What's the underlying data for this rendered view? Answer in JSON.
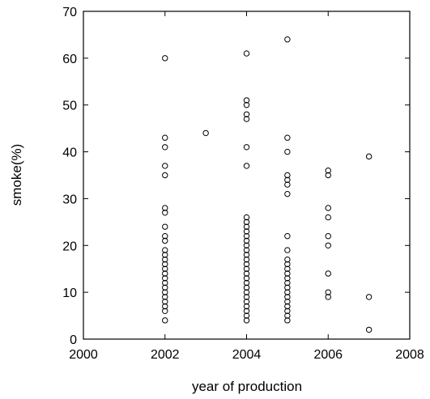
{
  "chart_data": {
    "type": "scatter",
    "title": "",
    "xlabel": "year of production",
    "ylabel": "smoke(%)",
    "xlim": [
      2000,
      2008
    ],
    "ylim": [
      0,
      70
    ],
    "xticks": [
      2000,
      2002,
      2004,
      2006,
      2008
    ],
    "yticks": [
      0,
      10,
      20,
      30,
      40,
      50,
      60,
      70
    ],
    "grid": false,
    "legend": "none",
    "marker": "open-circle",
    "points": [
      [
        2002,
        60
      ],
      [
        2002,
        43
      ],
      [
        2002,
        41
      ],
      [
        2002,
        37
      ],
      [
        2002,
        35
      ],
      [
        2002,
        28
      ],
      [
        2002,
        27
      ],
      [
        2002,
        24
      ],
      [
        2002,
        22
      ],
      [
        2002,
        21
      ],
      [
        2002,
        19
      ],
      [
        2002,
        18
      ],
      [
        2002,
        17
      ],
      [
        2002,
        16
      ],
      [
        2002,
        15
      ],
      [
        2002,
        14
      ],
      [
        2002,
        13
      ],
      [
        2002,
        12
      ],
      [
        2002,
        11
      ],
      [
        2002,
        10
      ],
      [
        2002,
        9
      ],
      [
        2002,
        8
      ],
      [
        2002,
        7
      ],
      [
        2002,
        6
      ],
      [
        2002,
        4
      ],
      [
        2003,
        44
      ],
      [
        2004,
        61
      ],
      [
        2004,
        51
      ],
      [
        2004,
        50
      ],
      [
        2004,
        48
      ],
      [
        2004,
        47
      ],
      [
        2004,
        41
      ],
      [
        2004,
        37
      ],
      [
        2004,
        26
      ],
      [
        2004,
        25
      ],
      [
        2004,
        24
      ],
      [
        2004,
        23
      ],
      [
        2004,
        22
      ],
      [
        2004,
        21
      ],
      [
        2004,
        20
      ],
      [
        2004,
        19
      ],
      [
        2004,
        18
      ],
      [
        2004,
        17
      ],
      [
        2004,
        16
      ],
      [
        2004,
        15
      ],
      [
        2004,
        14
      ],
      [
        2004,
        13
      ],
      [
        2004,
        12
      ],
      [
        2004,
        11
      ],
      [
        2004,
        10
      ],
      [
        2004,
        9
      ],
      [
        2004,
        8
      ],
      [
        2004,
        7
      ],
      [
        2004,
        6
      ],
      [
        2004,
        5
      ],
      [
        2004,
        4
      ],
      [
        2005,
        64
      ],
      [
        2005,
        43
      ],
      [
        2005,
        40
      ],
      [
        2005,
        35
      ],
      [
        2005,
        34
      ],
      [
        2005,
        33
      ],
      [
        2005,
        31
      ],
      [
        2005,
        22
      ],
      [
        2005,
        19
      ],
      [
        2005,
        17
      ],
      [
        2005,
        16
      ],
      [
        2005,
        15
      ],
      [
        2005,
        14
      ],
      [
        2005,
        13
      ],
      [
        2005,
        12
      ],
      [
        2005,
        11
      ],
      [
        2005,
        10
      ],
      [
        2005,
        9
      ],
      [
        2005,
        8
      ],
      [
        2005,
        7
      ],
      [
        2005,
        6
      ],
      [
        2005,
        5
      ],
      [
        2005,
        4
      ],
      [
        2006,
        36
      ],
      [
        2006,
        35
      ],
      [
        2006,
        28
      ],
      [
        2006,
        26
      ],
      [
        2006,
        22
      ],
      [
        2006,
        20
      ],
      [
        2006,
        14
      ],
      [
        2006,
        10
      ],
      [
        2006,
        9
      ],
      [
        2007,
        39
      ],
      [
        2007,
        9
      ],
      [
        2007,
        2
      ]
    ]
  }
}
